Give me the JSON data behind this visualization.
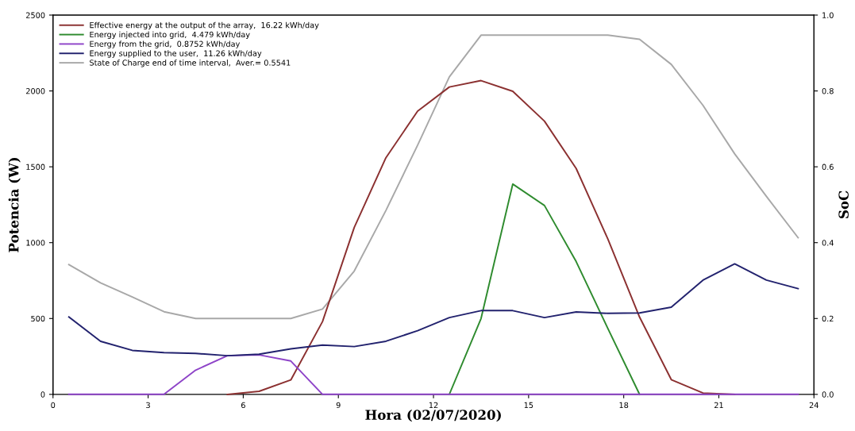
{
  "chart_data": {
    "type": "line",
    "xlabel": "Hora (02/07/2020)",
    "ylabel": "Potencia (W)",
    "y2label": "SoC",
    "x": [
      0.5,
      1.5,
      2.5,
      3.5,
      4.5,
      5.5,
      6.5,
      7.5,
      8.5,
      9.5,
      10.5,
      11.5,
      12.5,
      13.5,
      14.5,
      15.5,
      16.5,
      17.5,
      18.5,
      19.5,
      20.5,
      21.5,
      22.5,
      23.5
    ],
    "xlim": [
      0,
      24
    ],
    "xticks": [
      0,
      3,
      6,
      9,
      12,
      15,
      18,
      21,
      24
    ],
    "ylim": [
      0,
      2500
    ],
    "yticks": [
      0,
      500,
      1000,
      1500,
      2000,
      2500
    ],
    "y2lim": [
      0,
      1
    ],
    "y2ticks": [
      {
        "value": 0,
        "label": "0.0"
      },
      0.2,
      0.4,
      0.6,
      0.8,
      {
        "value": 1,
        "label": "1.0"
      }
    ],
    "legend": "top left",
    "grid": false,
    "marker": "none",
    "line_style": "solid",
    "series": [
      {
        "name": "Effective energy at the output of the array,  16.22 kWh/day",
        "color": "#8b3030",
        "values": [
          null,
          null,
          null,
          null,
          null,
          0,
          20,
          95,
          480,
          1100,
          1560,
          1867,
          2026,
          2068,
          1998,
          1801,
          1489,
          1024,
          509,
          97,
          9,
          0,
          null,
          null
        ]
      },
      {
        "name": "Energy injected into grid,  4.479 kWh/day",
        "color": "#2e8b2e",
        "values": [
          null,
          null,
          null,
          null,
          null,
          null,
          null,
          null,
          null,
          null,
          null,
          null,
          0,
          500,
          1386,
          1245,
          875,
          434,
          0,
          null,
          null,
          null,
          null,
          null
        ]
      },
      {
        "name": "Energy from the grid,  0.8752 kWh/day",
        "color": "#8e44c8",
        "values": [
          0,
          0,
          0,
          0,
          160,
          255,
          260,
          220,
          0,
          0,
          0,
          0,
          0,
          0,
          0,
          0,
          0,
          0,
          0,
          0,
          0,
          0,
          0,
          0
        ]
      },
      {
        "name": "Energy supplied to the user,  11.26 kWh/day",
        "color": "#22226e",
        "values": [
          510,
          350,
          290,
          275,
          270,
          255,
          265,
          300,
          325,
          315,
          350,
          420,
          506,
          552,
          552,
          506,
          543,
          534,
          537,
          575,
          753,
          860,
          753,
          697
        ]
      },
      {
        "name": "State of Charge end of time interval,  Aver.= 0.5541",
        "color": "#a8a8a8",
        "axis": "y2",
        "values": [
          0.342,
          0.294,
          0.257,
          0.218,
          0.2,
          0.2,
          0.2,
          0.2,
          0.225,
          0.325,
          0.485,
          0.657,
          0.837,
          0.947,
          0.947,
          0.947,
          0.947,
          0.947,
          0.936,
          0.87,
          0.762,
          0.634,
          0.522,
          0.413
        ]
      }
    ]
  }
}
